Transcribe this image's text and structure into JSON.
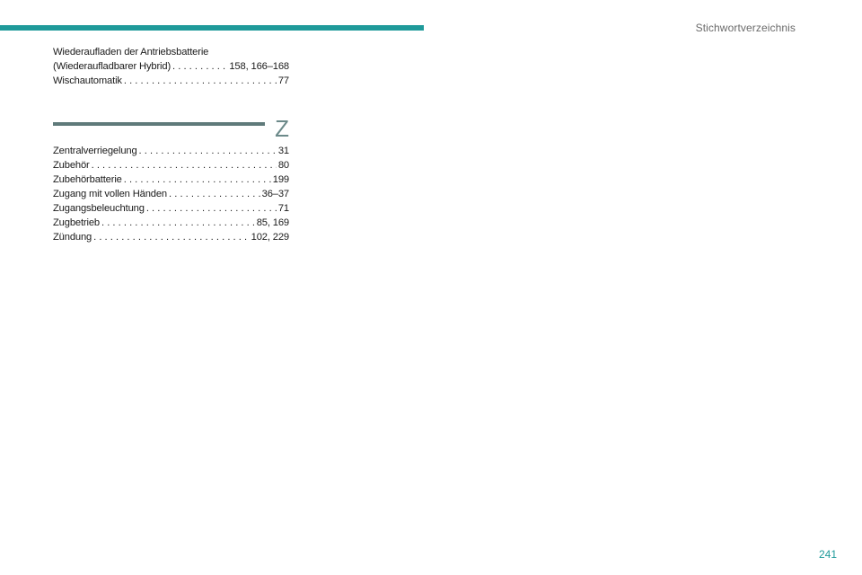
{
  "header": {
    "section_title": "Stichwortverzeichnis"
  },
  "entries_w": [
    {
      "term_line1": "Wiederaufladen der Antriebsbatterie",
      "term_line2": "(Wiederaufladbarer Hybrid)",
      "pages": "158, 166–168"
    },
    {
      "term": "Wischautomatik",
      "pages": "77"
    }
  ],
  "letter_section": {
    "letter": "Z"
  },
  "entries_z": [
    {
      "term": "Zentralverriegelung",
      "pages": "31"
    },
    {
      "term": "Zubehör",
      "pages": "80"
    },
    {
      "term": "Zubehörbatterie",
      "pages": "199"
    },
    {
      "term": "Zugang mit vollen Händen",
      "pages": "36–37"
    },
    {
      "term": "Zugangsbeleuchtung",
      "pages": "71"
    },
    {
      "term": "Zugbetrieb",
      "pages": "85, 169"
    },
    {
      "term": "Zündung",
      "pages": "102, 229"
    }
  ],
  "footer": {
    "page_number": "241"
  },
  "colors": {
    "accent": "#1f9a9a",
    "rule": "#5f7a7a",
    "letter": "#6c8a8a"
  }
}
